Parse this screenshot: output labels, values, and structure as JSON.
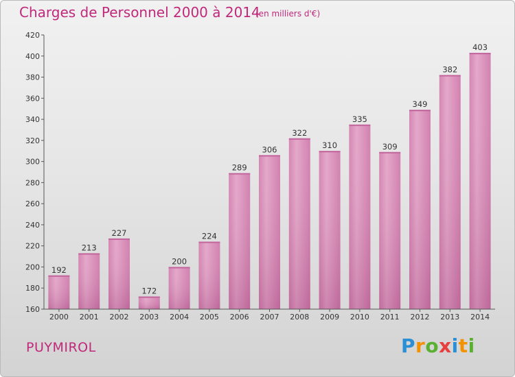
{
  "title": "Charges de Personnel 2000 à 2014",
  "subtitle": "(en milliers d'€)",
  "town": "PUYMIROL",
  "logo": {
    "letters": [
      "P",
      "r",
      "o",
      "x",
      "i",
      "t",
      "i"
    ],
    "colors": [
      "#2a8fd4",
      "#f39200",
      "#5ab031",
      "#e73e3e",
      "#2a8fd4",
      "#f39200",
      "#5ab031"
    ]
  },
  "colors": {
    "bar": "#d98ab7",
    "bar_light": "#eab3d2",
    "bar_dark": "#b9619a",
    "text": "#c0287a"
  },
  "chart_data": {
    "type": "bar",
    "categories": [
      "2000",
      "2001",
      "2002",
      "2003",
      "2004",
      "2005",
      "2006",
      "2007",
      "2008",
      "2009",
      "2010",
      "2011",
      "2012",
      "2013",
      "2014"
    ],
    "values": [
      192,
      213,
      227,
      172,
      200,
      224,
      289,
      306,
      322,
      310,
      335,
      309,
      349,
      382,
      403
    ],
    "title": "Charges de Personnel 2000 à 2014",
    "xlabel": "",
    "ylabel": "",
    "ylim": [
      160,
      420
    ],
    "yticks": [
      160,
      180,
      200,
      220,
      240,
      260,
      280,
      300,
      320,
      340,
      360,
      380,
      400,
      420
    ],
    "grid": false,
    "data_labels": true
  }
}
